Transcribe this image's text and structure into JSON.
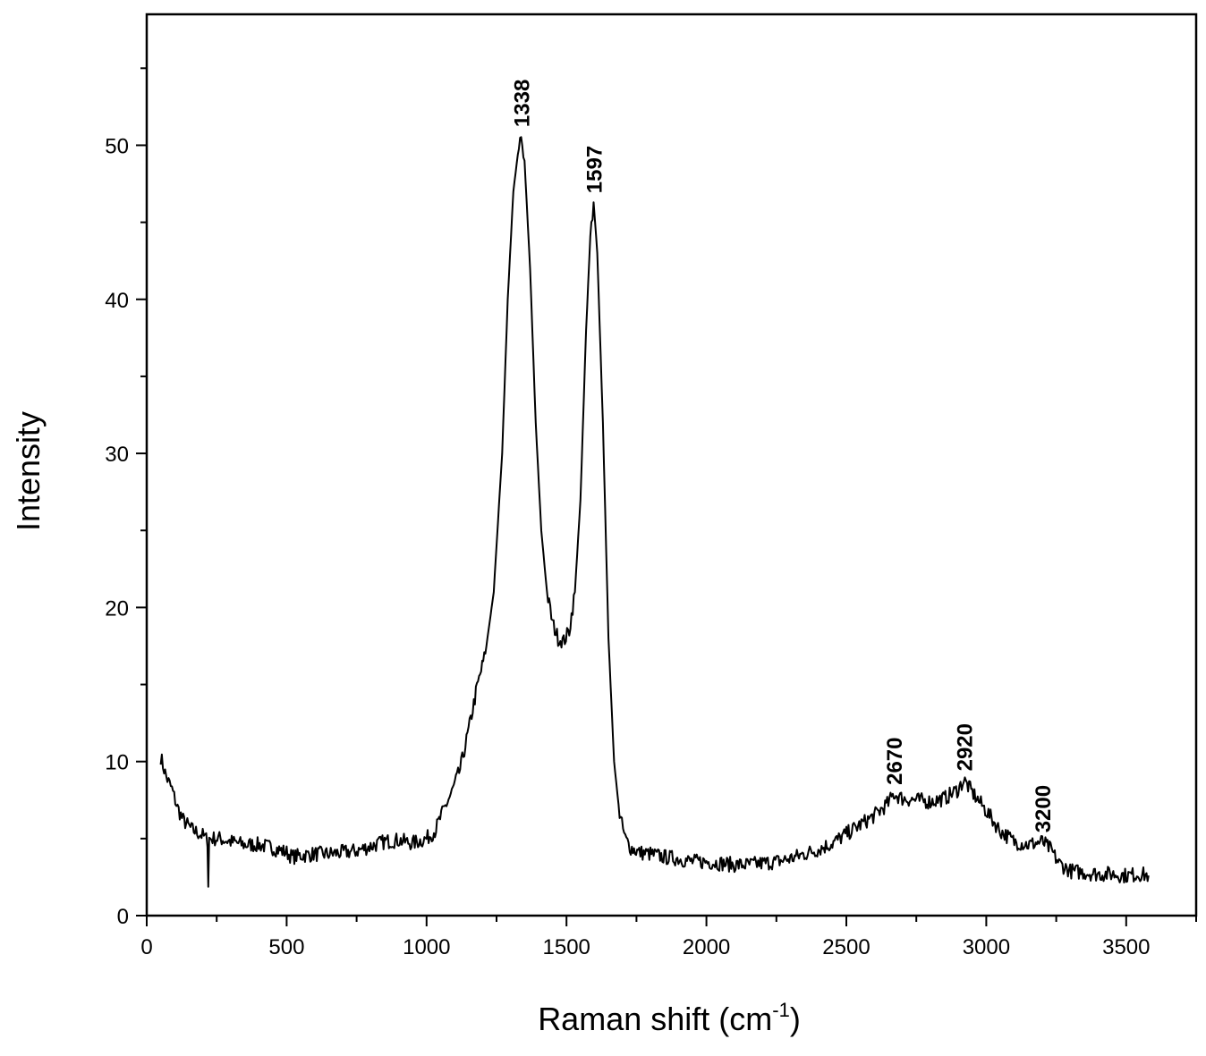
{
  "chart_data": {
    "type": "line",
    "xlabel_main": "Raman shift (cm",
    "xlabel_sup": "-1",
    "xlabel_end": ")",
    "ylabel": "Intensity",
    "xlim": [
      0,
      3750
    ],
    "ylim": [
      0,
      58.5
    ],
    "x_ticks": [
      0,
      500,
      1000,
      1500,
      2000,
      2500,
      3000,
      3500
    ],
    "x_tick_labels": [
      "0",
      "500",
      "1000",
      "1500",
      "2000",
      "2500",
      "3000",
      "3500"
    ],
    "y_ticks": [
      0,
      10,
      20,
      30,
      40,
      50
    ],
    "y_tick_labels": [
      "0",
      "10",
      "20",
      "30",
      "40",
      "50"
    ],
    "grid": false,
    "line_color": "#000000",
    "peaks": [
      {
        "x": 1338,
        "y": 50.6,
        "label": "1338"
      },
      {
        "x": 1597,
        "y": 46.3,
        "label": "1597"
      },
      {
        "x": 2670,
        "y": 7.9,
        "label": "2670"
      },
      {
        "x": 2920,
        "y": 8.8,
        "label": "2920"
      },
      {
        "x": 3200,
        "y": 4.8,
        "label": "3200"
      }
    ],
    "series": [
      {
        "x": [
          50,
          70,
          90,
          110,
          130,
          160,
          200,
          217,
          220,
          223,
          260,
          300,
          350,
          400,
          450,
          500,
          520,
          550,
          600,
          650,
          700,
          750,
          800,
          850,
          900,
          950,
          1000,
          1030,
          1060,
          1090,
          1120,
          1150,
          1180,
          1210,
          1240,
          1270,
          1290,
          1310,
          1330,
          1338,
          1350,
          1370,
          1390,
          1410,
          1430,
          1450,
          1470,
          1490,
          1510,
          1530,
          1550,
          1570,
          1585,
          1597,
          1610,
          1630,
          1650,
          1670,
          1690,
          1710,
          1730,
          1760,
          1800,
          1850,
          1900,
          1950,
          2000,
          2050,
          2100,
          2150,
          2200,
          2250,
          2300,
          2350,
          2400,
          2450,
          2500,
          2550,
          2600,
          2650,
          2670,
          2700,
          2750,
          2800,
          2850,
          2900,
          2920,
          2950,
          3000,
          3050,
          3100,
          3150,
          3200,
          3230,
          3260,
          3300,
          3350,
          3400,
          3450,
          3500,
          3550,
          3580
        ],
        "y": [
          10.3,
          9.0,
          8.2,
          7.0,
          6.2,
          5.6,
          5.2,
          4.9,
          2.1,
          5.0,
          5.0,
          4.8,
          4.6,
          4.6,
          4.4,
          4.1,
          3.8,
          3.9,
          4.0,
          4.0,
          4.1,
          4.2,
          4.5,
          4.8,
          4.9,
          4.7,
          5.0,
          5.5,
          6.8,
          8.0,
          9.5,
          12.0,
          14.8,
          17.0,
          21.0,
          30.0,
          40.0,
          47.0,
          50.0,
          50.6,
          49.0,
          42.0,
          32.0,
          25.0,
          21.0,
          19.0,
          18.0,
          17.8,
          18.5,
          21.0,
          27.0,
          38.0,
          44.0,
          46.3,
          43.0,
          32.0,
          18.0,
          10.0,
          6.5,
          5.0,
          4.4,
          4.1,
          4.0,
          3.8,
          3.7,
          3.5,
          3.5,
          3.4,
          3.3,
          3.3,
          3.4,
          3.5,
          3.7,
          4.0,
          4.3,
          4.7,
          5.3,
          5.9,
          6.5,
          7.3,
          7.9,
          7.6,
          7.5,
          7.4,
          7.6,
          8.2,
          8.8,
          8.0,
          6.8,
          5.5,
          4.8,
          4.6,
          4.8,
          4.3,
          3.4,
          2.9,
          2.8,
          2.7,
          2.7,
          2.6,
          2.7,
          2.6
        ]
      }
    ]
  }
}
